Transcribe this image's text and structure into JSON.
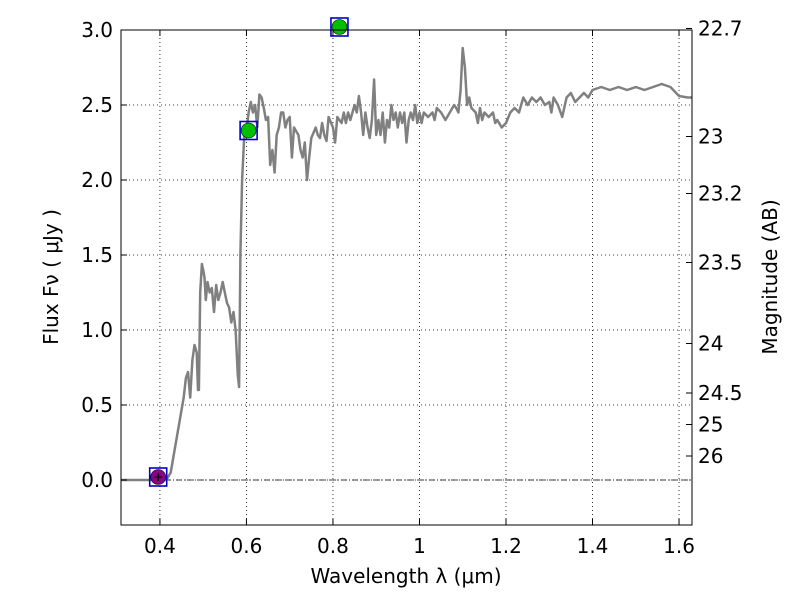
{
  "chart_data": {
    "type": "line",
    "xlabel": "Wavelength  λ (μm)",
    "ylabel": "Flux  Fν  ( μJy )",
    "y2label": "Magnitude (AB)",
    "xlim": [
      0.31,
      1.63
    ],
    "ylim": [
      -0.3,
      3.0
    ],
    "grid": true,
    "x_ticks": [
      0.4,
      0.6,
      0.8,
      1.0,
      1.2,
      1.4,
      1.6
    ],
    "x_tick_labels": [
      "0.4",
      "0.6",
      "0.8",
      "1",
      "1.2",
      "1.4",
      "1.6"
    ],
    "y_ticks": [
      0.0,
      0.5,
      1.0,
      1.5,
      2.0,
      2.5,
      3.0
    ],
    "y_tick_labels": [
      "0.0",
      "0.5",
      "1.0",
      "1.5",
      "2.0",
      "2.5",
      "3.0"
    ],
    "y2_ticks": [
      {
        "flux": 3.01,
        "label": "22.7"
      },
      {
        "flux": 2.29,
        "label": "23"
      },
      {
        "flux": 1.91,
        "label": "23.2"
      },
      {
        "flux": 1.45,
        "label": "23.5"
      },
      {
        "flux": 0.91,
        "label": "24"
      },
      {
        "flux": 0.58,
        "label": "24.5"
      },
      {
        "flux": 0.37,
        "label": "25"
      },
      {
        "flux": 0.16,
        "label": "26"
      }
    ],
    "reference_line_y": 0.0,
    "series": [
      {
        "color": "#808080",
        "points": [
          [
            0.31,
            0.0
          ],
          [
            0.4,
            0.0
          ],
          [
            0.415,
            0.0
          ],
          [
            0.425,
            0.05
          ],
          [
            0.44,
            0.3
          ],
          [
            0.455,
            0.55
          ],
          [
            0.46,
            0.68
          ],
          [
            0.465,
            0.72
          ],
          [
            0.47,
            0.55
          ],
          [
            0.475,
            0.8
          ],
          [
            0.48,
            0.9
          ],
          [
            0.485,
            0.85
          ],
          [
            0.488,
            0.6
          ],
          [
            0.49,
            0.6
          ],
          [
            0.493,
            1.25
          ],
          [
            0.497,
            1.44
          ],
          [
            0.5,
            1.4
          ],
          [
            0.503,
            1.35
          ],
          [
            0.506,
            1.2
          ],
          [
            0.51,
            1.32
          ],
          [
            0.515,
            1.25
          ],
          [
            0.52,
            1.28
          ],
          [
            0.525,
            1.12
          ],
          [
            0.53,
            1.3
          ],
          [
            0.535,
            1.2
          ],
          [
            0.54,
            1.25
          ],
          [
            0.545,
            1.32
          ],
          [
            0.55,
            1.25
          ],
          [
            0.555,
            1.18
          ],
          [
            0.56,
            1.15
          ],
          [
            0.565,
            1.05
          ],
          [
            0.57,
            1.12
          ],
          [
            0.575,
            1.0
          ],
          [
            0.58,
            0.7
          ],
          [
            0.583,
            0.62
          ],
          [
            0.586,
            1.5
          ],
          [
            0.59,
            2.0
          ],
          [
            0.595,
            2.3
          ],
          [
            0.6,
            2.32
          ],
          [
            0.605,
            2.45
          ],
          [
            0.61,
            2.52
          ],
          [
            0.615,
            2.45
          ],
          [
            0.62,
            2.5
          ],
          [
            0.625,
            2.35
          ],
          [
            0.63,
            2.57
          ],
          [
            0.635,
            2.55
          ],
          [
            0.64,
            2.48
          ],
          [
            0.645,
            2.4
          ],
          [
            0.65,
            2.42
          ],
          [
            0.655,
            2.1
          ],
          [
            0.66,
            2.2
          ],
          [
            0.665,
            2.05
          ],
          [
            0.67,
            2.3
          ],
          [
            0.675,
            2.35
          ],
          [
            0.68,
            2.45
          ],
          [
            0.685,
            2.45
          ],
          [
            0.69,
            2.35
          ],
          [
            0.695,
            2.4
          ],
          [
            0.7,
            2.42
          ],
          [
            0.705,
            2.15
          ],
          [
            0.71,
            2.35
          ],
          [
            0.72,
            2.3
          ],
          [
            0.725,
            2.2
          ],
          [
            0.73,
            2.15
          ],
          [
            0.735,
            2.25
          ],
          [
            0.74,
            2.0
          ],
          [
            0.745,
            2.15
          ],
          [
            0.75,
            2.28
          ],
          [
            0.76,
            2.35
          ],
          [
            0.765,
            2.3
          ],
          [
            0.77,
            2.28
          ],
          [
            0.775,
            2.38
          ],
          [
            0.78,
            2.3
          ],
          [
            0.785,
            2.26
          ],
          [
            0.79,
            2.42
          ],
          [
            0.8,
            2.35
          ],
          [
            0.805,
            2.25
          ],
          [
            0.81,
            2.42
          ],
          [
            0.82,
            2.38
          ],
          [
            0.825,
            2.45
          ],
          [
            0.83,
            2.38
          ],
          [
            0.835,
            2.45
          ],
          [
            0.84,
            2.4
          ],
          [
            0.85,
            2.5
          ],
          [
            0.855,
            2.45
          ],
          [
            0.86,
            2.56
          ],
          [
            0.865,
            2.45
          ],
          [
            0.87,
            2.3
          ],
          [
            0.875,
            2.45
          ],
          [
            0.88,
            2.35
          ],
          [
            0.885,
            2.28
          ],
          [
            0.89,
            2.4
          ],
          [
            0.895,
            2.67
          ],
          [
            0.9,
            2.3
          ],
          [
            0.905,
            2.4
          ],
          [
            0.91,
            2.3
          ],
          [
            0.915,
            2.45
          ],
          [
            0.92,
            2.25
          ],
          [
            0.925,
            2.4
          ],
          [
            0.93,
            2.35
          ],
          [
            0.935,
            2.5
          ],
          [
            0.94,
            2.4
          ],
          [
            0.945,
            2.45
          ],
          [
            0.95,
            2.35
          ],
          [
            0.955,
            2.45
          ],
          [
            0.96,
            2.38
          ],
          [
            0.965,
            2.45
          ],
          [
            0.97,
            2.25
          ],
          [
            0.975,
            2.4
          ],
          [
            0.98,
            2.45
          ],
          [
            0.985,
            2.4
          ],
          [
            0.99,
            2.5
          ],
          [
            0.995,
            2.38
          ],
          [
            1.0,
            2.45
          ],
          [
            1.005,
            2.38
          ],
          [
            1.01,
            2.45
          ],
          [
            1.02,
            2.42
          ],
          [
            1.03,
            2.45
          ],
          [
            1.035,
            2.4
          ],
          [
            1.04,
            2.48
          ],
          [
            1.05,
            2.45
          ],
          [
            1.06,
            2.4
          ],
          [
            1.07,
            2.45
          ],
          [
            1.08,
            2.5
          ],
          [
            1.085,
            2.48
          ],
          [
            1.09,
            2.45
          ],
          [
            1.095,
            2.6
          ],
          [
            1.1,
            2.88
          ],
          [
            1.105,
            2.75
          ],
          [
            1.11,
            2.5
          ],
          [
            1.115,
            2.55
          ],
          [
            1.12,
            2.48
          ],
          [
            1.13,
            2.45
          ],
          [
            1.135,
            2.38
          ],
          [
            1.14,
            2.48
          ],
          [
            1.145,
            2.4
          ],
          [
            1.15,
            2.45
          ],
          [
            1.16,
            2.42
          ],
          [
            1.17,
            2.45
          ],
          [
            1.175,
            2.38
          ],
          [
            1.18,
            2.4
          ],
          [
            1.19,
            2.35
          ],
          [
            1.2,
            2.38
          ],
          [
            1.21,
            2.45
          ],
          [
            1.22,
            2.48
          ],
          [
            1.23,
            2.45
          ],
          [
            1.24,
            2.55
          ],
          [
            1.25,
            2.5
          ],
          [
            1.26,
            2.55
          ],
          [
            1.27,
            2.52
          ],
          [
            1.28,
            2.55
          ],
          [
            1.29,
            2.5
          ],
          [
            1.3,
            2.52
          ],
          [
            1.305,
            2.45
          ],
          [
            1.31,
            2.55
          ],
          [
            1.32,
            2.5
          ],
          [
            1.33,
            2.42
          ],
          [
            1.34,
            2.55
          ],
          [
            1.35,
            2.58
          ],
          [
            1.36,
            2.52
          ],
          [
            1.37,
            2.55
          ],
          [
            1.38,
            2.58
          ],
          [
            1.39,
            2.55
          ],
          [
            1.4,
            2.6
          ],
          [
            1.42,
            2.62
          ],
          [
            1.44,
            2.6
          ],
          [
            1.46,
            2.62
          ],
          [
            1.48,
            2.6
          ],
          [
            1.5,
            2.62
          ],
          [
            1.52,
            2.6
          ],
          [
            1.54,
            2.62
          ],
          [
            1.56,
            2.64
          ],
          [
            1.58,
            2.62
          ],
          [
            1.6,
            2.56
          ],
          [
            1.62,
            2.55
          ],
          [
            1.63,
            2.55
          ]
        ]
      }
    ],
    "photometry": [
      {
        "x": 0.396,
        "y": 0.02,
        "color": "#8b008b",
        "errorbar": true
      },
      {
        "x": 0.605,
        "y": 2.33,
        "color": "#00bf00",
        "errorbar": false
      },
      {
        "x": 0.815,
        "y": 3.02,
        "color": "#00bf00",
        "errorbar": false
      }
    ],
    "marker_box_color": "#0000cc"
  }
}
